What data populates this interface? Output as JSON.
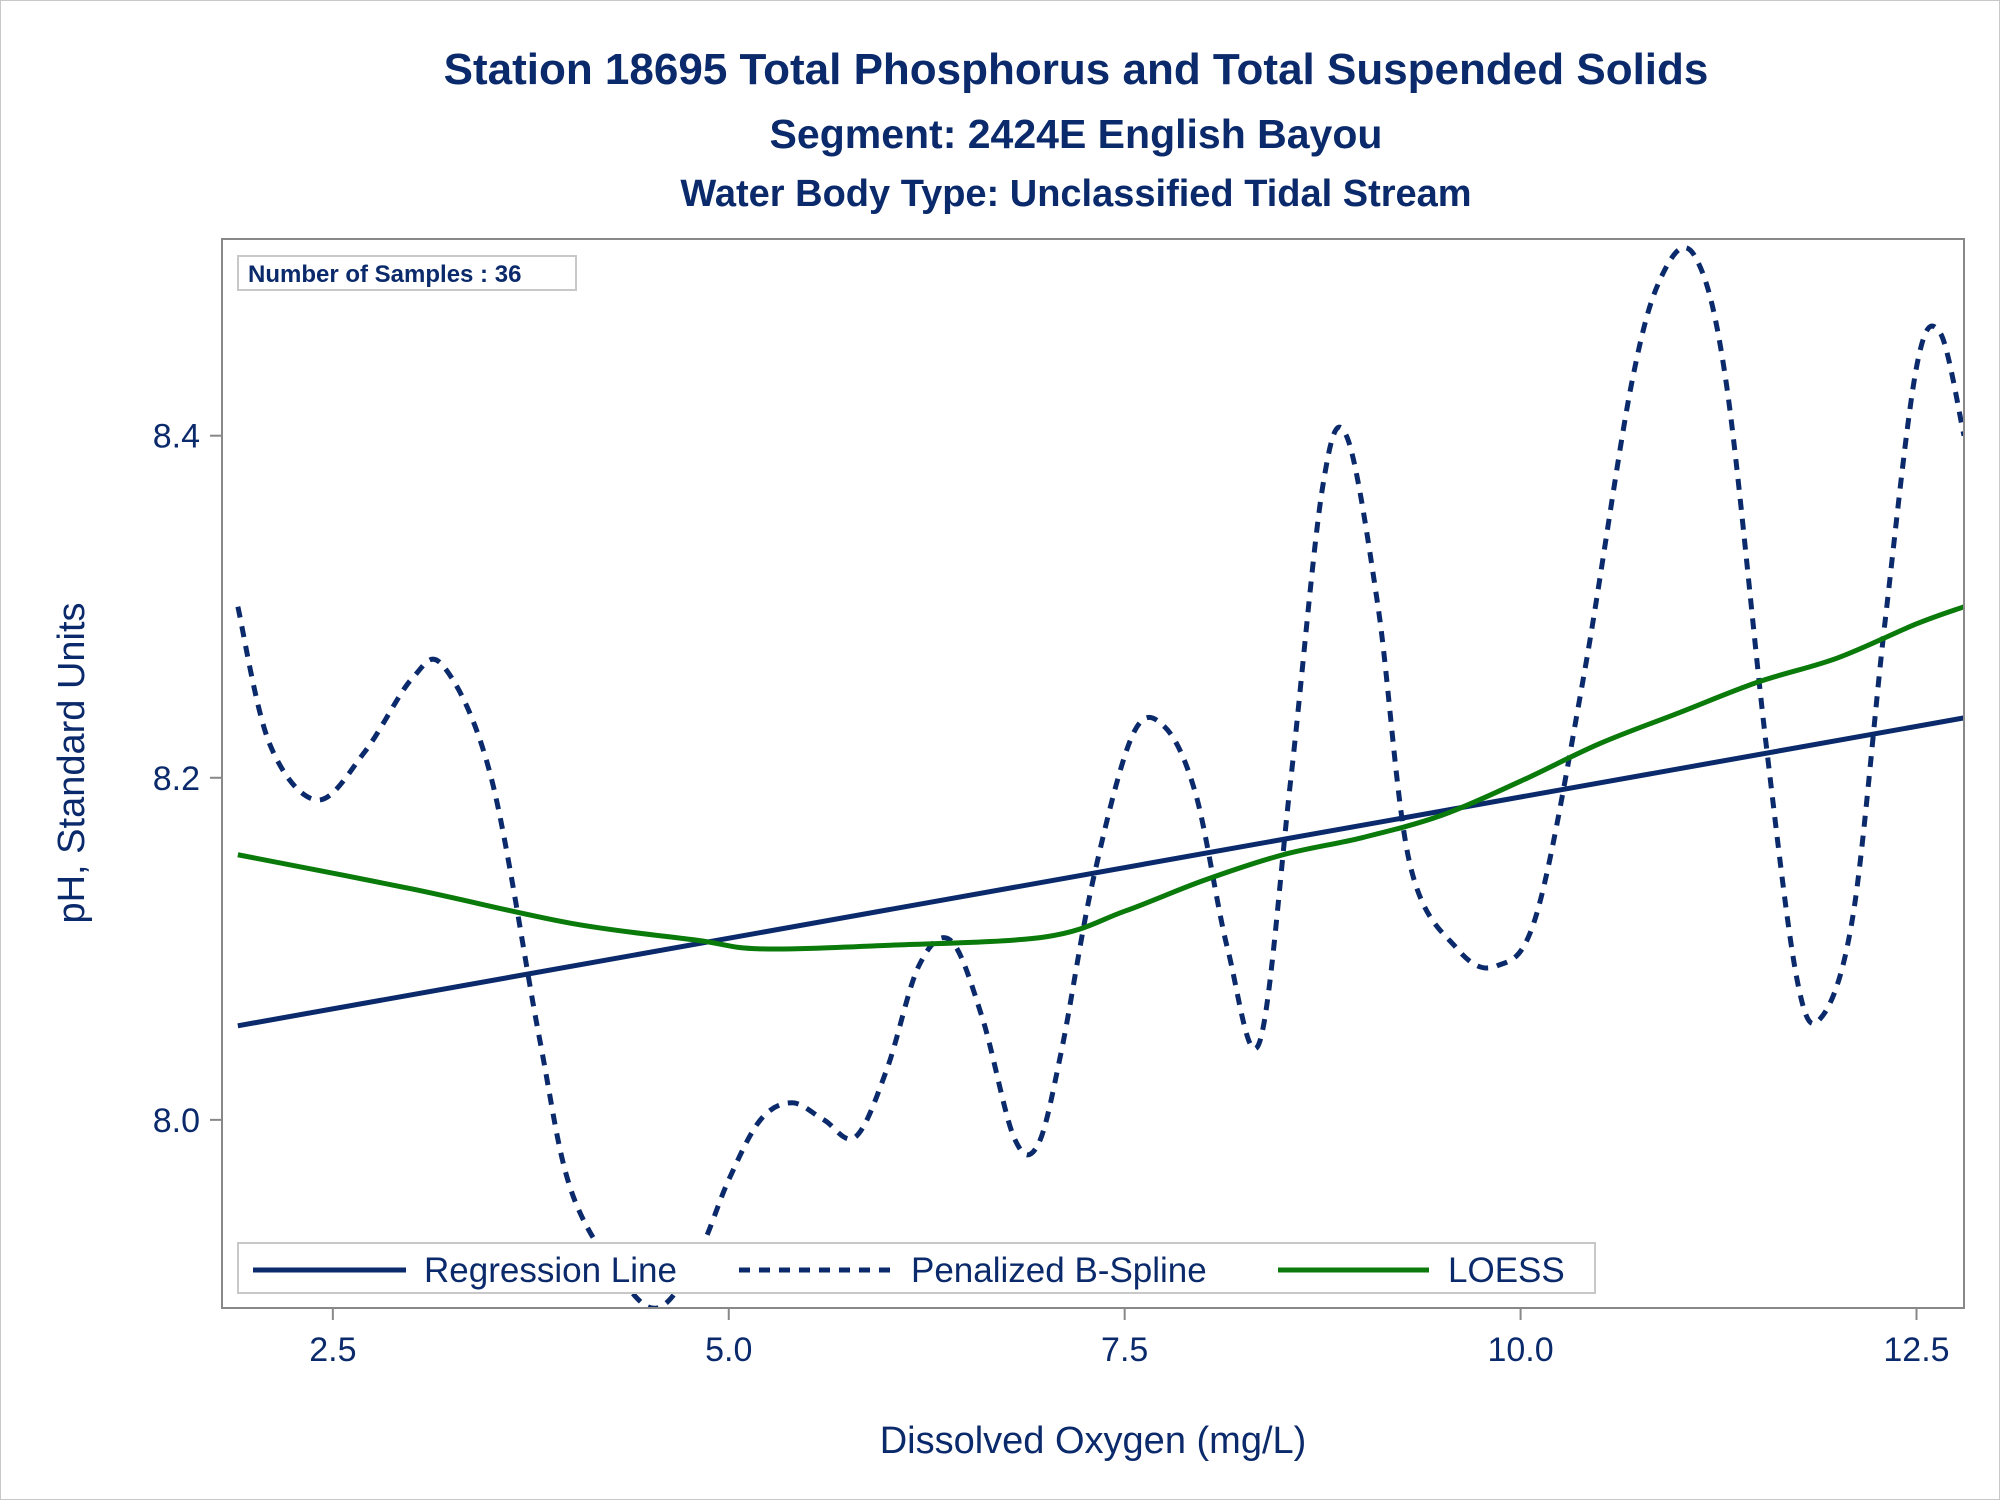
{
  "chart_data": {
    "type": "line",
    "title": "Station 18695  Total Phosphorus and Total Suspended Solids",
    "subtitle": "Segment: 2424E  English Bayou",
    "subtitle2": "Water Body Type: Unclassified Tidal Stream",
    "annotation": "Number of Samples : 36",
    "xlabel": "Dissolved Oxygen (mg/L)",
    "ylabel": "pH, Standard Units",
    "xlim": [
      1.8,
      12.8
    ],
    "ylim": [
      7.89,
      8.515
    ],
    "xticks": [
      2.5,
      5.0,
      7.5,
      10.0,
      12.5
    ],
    "xtick_labels": [
      "2.5",
      "5.0",
      "7.5",
      "10.0",
      "12.5"
    ],
    "yticks": [
      8.0,
      8.2,
      8.4
    ],
    "ytick_labels": [
      "8.0",
      "8.2",
      "8.4"
    ],
    "legend_position": "bottom-inside",
    "grid": false,
    "colors": {
      "regression": "#0b2a6b",
      "spline": "#0b2a6b",
      "loess": "#0a7a0a",
      "text": "#0b2a6b",
      "frame": "#888888"
    },
    "series": [
      {
        "name": "Regression Line",
        "style": "solid",
        "x": [
          1.9,
          12.8
        ],
        "y": [
          8.055,
          8.235
        ]
      },
      {
        "name": "Penalized B-Spline",
        "style": "dashed",
        "x": [
          1.9,
          2.1,
          2.4,
          2.7,
          3.0,
          3.2,
          3.5,
          3.8,
          4.0,
          4.3,
          4.55,
          4.8,
          5.0,
          5.2,
          5.4,
          5.6,
          5.8,
          6.0,
          6.2,
          6.4,
          6.6,
          6.8,
          6.95,
          7.1,
          7.3,
          7.55,
          7.75,
          7.95,
          8.15,
          8.35,
          8.55,
          8.75,
          8.9,
          9.1,
          9.3,
          9.6,
          9.85,
          10.1,
          10.4,
          10.7,
          10.9,
          11.1,
          11.3,
          11.55,
          11.75,
          11.9,
          12.1,
          12.3,
          12.5,
          12.65,
          12.8
        ],
        "y": [
          8.3,
          8.22,
          8.187,
          8.215,
          8.258,
          8.265,
          8.2,
          8.05,
          7.96,
          7.91,
          7.89,
          7.92,
          7.965,
          8.0,
          8.01,
          8.0,
          7.99,
          8.03,
          8.09,
          8.105,
          8.06,
          7.99,
          7.985,
          8.04,
          8.14,
          8.225,
          8.23,
          8.19,
          8.1,
          8.045,
          8.2,
          8.37,
          8.4,
          8.3,
          8.15,
          8.1,
          8.09,
          8.12,
          8.26,
          8.43,
          8.495,
          8.505,
          8.43,
          8.22,
          8.08,
          8.06,
          8.12,
          8.29,
          8.44,
          8.46,
          8.4
        ]
      },
      {
        "name": "LOESS",
        "style": "solid",
        "x": [
          1.9,
          3.0,
          4.0,
          4.8,
          5.2,
          6.0,
          7.0,
          7.5,
          8.0,
          8.5,
          9.0,
          9.5,
          10.0,
          10.5,
          11.0,
          11.5,
          12.0,
          12.5,
          12.8
        ],
        "y": [
          8.155,
          8.135,
          8.115,
          8.105,
          8.1,
          8.102,
          8.107,
          8.122,
          8.14,
          8.155,
          8.165,
          8.178,
          8.198,
          8.22,
          8.238,
          8.256,
          8.27,
          8.29,
          8.3
        ]
      }
    ]
  }
}
